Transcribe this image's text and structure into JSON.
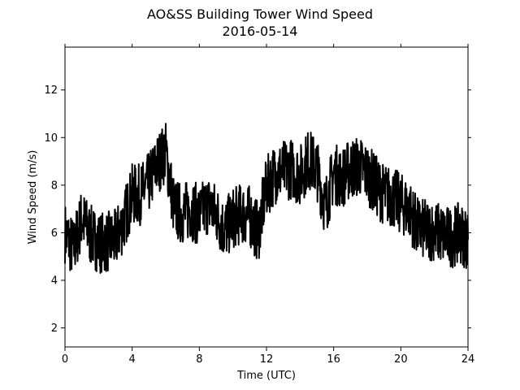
{
  "chart_data": {
    "type": "line",
    "title": "AO&SS Building Tower Wind Speed",
    "subtitle": "2016-05-14",
    "xlabel": "Time (UTC)",
    "ylabel": "Wind Speed (m/s)",
    "xlim": [
      0,
      24
    ],
    "ylim": [
      1.2,
      13.8
    ],
    "xticks": [
      0,
      4,
      8,
      12,
      16,
      20,
      24
    ],
    "yticks": [
      2,
      4,
      6,
      8,
      10,
      12
    ],
    "grid": false,
    "line_color": "#000000",
    "series": [
      {
        "x": [
          0,
          0.5,
          1,
          1.5,
          2,
          2.5,
          3,
          3.5,
          4,
          4.5,
          5,
          5.5,
          6,
          6.5,
          7,
          7.5,
          8,
          8.5,
          9,
          9.5,
          10,
          10.5,
          11,
          11.5,
          12,
          12.5,
          13,
          13.5,
          14,
          14.5,
          15,
          15.5,
          16,
          16.5,
          17,
          17.5,
          18,
          18.5,
          19,
          19.5,
          20,
          20.5,
          21,
          21.5,
          22,
          22.5,
          23,
          23.5,
          24
        ],
        "y": [
          6.0,
          5.3,
          6.6,
          5.9,
          5.6,
          5.6,
          5.7,
          6.5,
          7.6,
          7.6,
          8.1,
          8.9,
          9.4,
          7.0,
          6.8,
          7.0,
          6.7,
          7.2,
          6.8,
          6.1,
          6.6,
          6.8,
          6.7,
          6.0,
          7.9,
          8.5,
          8.6,
          8.7,
          8.4,
          9.1,
          8.7,
          7.1,
          8.5,
          8.3,
          8.7,
          8.8,
          8.5,
          8.0,
          7.6,
          7.5,
          7.2,
          7.0,
          6.2,
          6.1,
          6.1,
          5.9,
          5.8,
          6.0,
          5.7
        ]
      }
    ]
  }
}
